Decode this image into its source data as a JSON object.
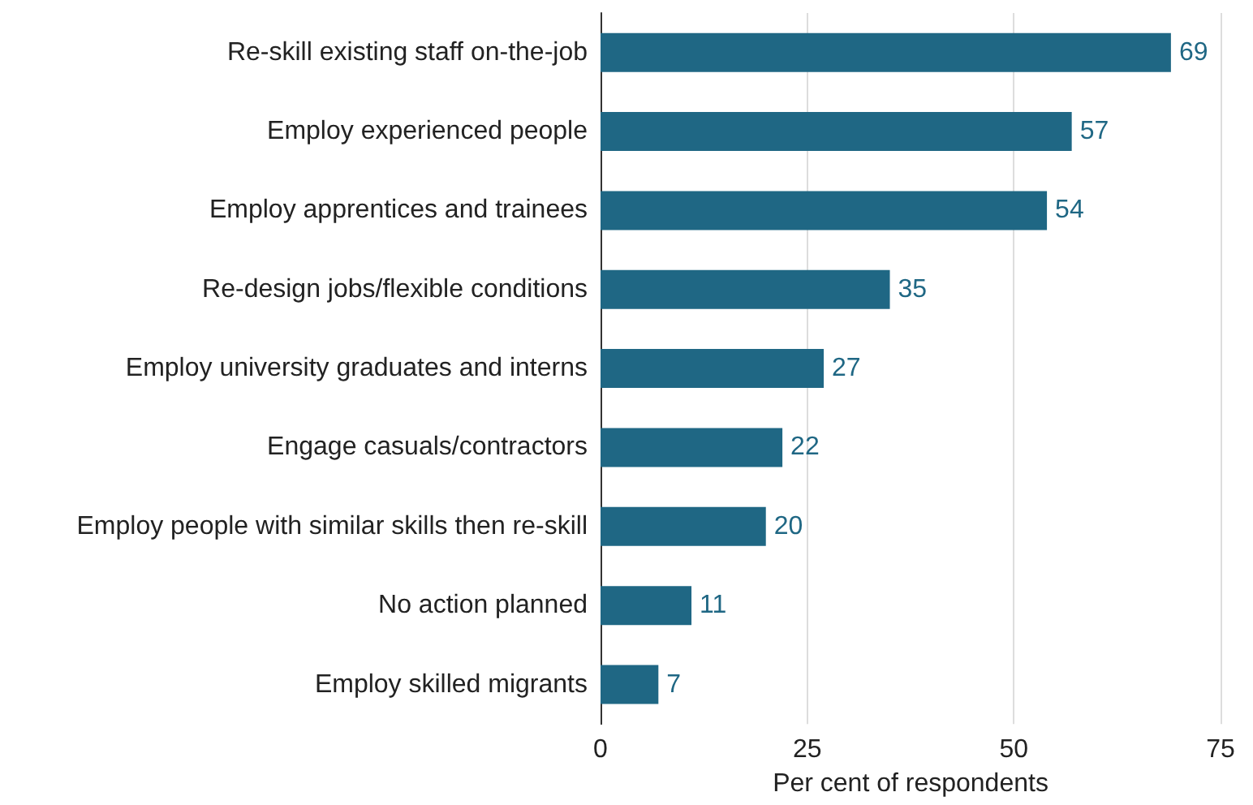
{
  "chart_data": {
    "type": "bar",
    "orientation": "horizontal",
    "xlabel": "Per cent of respondents",
    "categories": [
      "Re-skill existing staff on-the-job",
      "Employ experienced people",
      "Employ apprentices and trainees",
      "Re-design jobs/flexible conditions",
      "Employ university graduates and interns",
      "Engage casuals/contractors",
      "Employ people with similar skills then re-skill",
      "No action planned",
      "Employ skilled migrants"
    ],
    "values": [
      69,
      57,
      54,
      35,
      27,
      22,
      20,
      11,
      7
    ],
    "color": "#1f6784",
    "xlim": [
      0,
      75
    ],
    "xticks": [
      0,
      25,
      50,
      75
    ],
    "grid": "x",
    "data_labels": true
  }
}
